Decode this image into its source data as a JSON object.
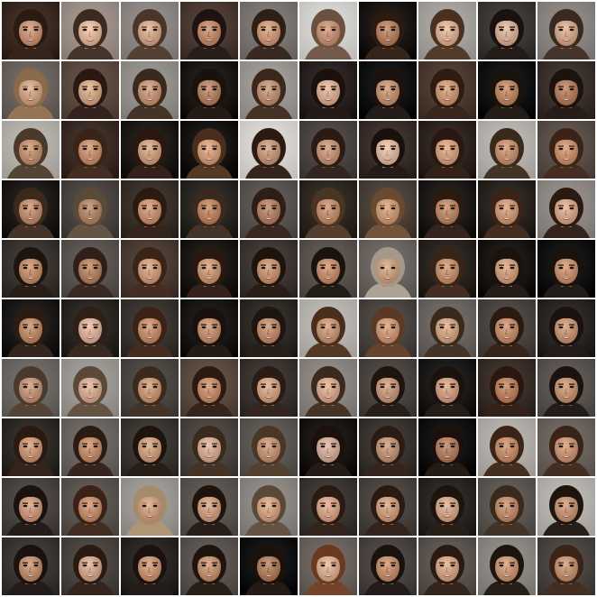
{
  "grid": {
    "rows": 10,
    "cols": 10,
    "separator_color": "#ffffff",
    "tiles": [
      {
        "bg": "#3a2a22",
        "skin": "#c99a7e",
        "hair": "#2a1a12"
      },
      {
        "bg": "#9a8e86",
        "skin": "#e2bba0",
        "hair": "#3b2a20"
      },
      {
        "bg": "#8c8682",
        "skin": "#d5ae92",
        "hair": "#4a3628"
      },
      {
        "bg": "#4a3a32",
        "skin": "#c29176",
        "hair": "#1e130e"
      },
      {
        "bg": "#7a7470",
        "skin": "#cfa081",
        "hair": "#2e1f16"
      },
      {
        "bg": "#d2d0cc",
        "skin": "#c99a80",
        "hair": "#6a5040"
      },
      {
        "bg": "#1a1614",
        "skin": "#b98a6c",
        "hair": "#2a1a10"
      },
      {
        "bg": "#a4a09c",
        "skin": "#dcb59a",
        "hair": "#4a3020"
      },
      {
        "bg": "#3c3836",
        "skin": "#d8b49c",
        "hair": "#1a120e"
      },
      {
        "bg": "#8a8480",
        "skin": "#d4ad92",
        "hair": "#3a2a20"
      },
      {
        "bg": "#6a625c",
        "skin": "#d3a98c",
        "hair": "#8a6a4a"
      },
      {
        "bg": "#5a4a40",
        "skin": "#d6ac8e",
        "hair": "#2a1812"
      },
      {
        "bg": "#928e8a",
        "skin": "#c89c80",
        "hair": "#3a2a1e"
      },
      {
        "bg": "#1c1816",
        "skin": "#b88a70",
        "hair": "#1a100c"
      },
      {
        "bg": "#9a9692",
        "skin": "#c39a80",
        "hair": "#3a281c"
      },
      {
        "bg": "#2a2220",
        "skin": "#dcb29a",
        "hair": "#1a100c"
      },
      {
        "bg": "#121010",
        "skin": "#c89a7c",
        "hair": "#1a120e"
      },
      {
        "bg": "#4a3a30",
        "skin": "#cf9f80",
        "hair": "#2e1c12"
      },
      {
        "bg": "#101010",
        "skin": "#c2906e",
        "hair": "#1a120c"
      },
      {
        "bg": "#3a302c",
        "skin": "#b8866a",
        "hair": "#1c120e"
      },
      {
        "bg": "#b2aea8",
        "skin": "#c6987a",
        "hair": "#4a3a2a"
      },
      {
        "bg": "#3a2c24",
        "skin": "#c99878",
        "hair": "#3a2418"
      },
      {
        "bg": "#1e1a18",
        "skin": "#d0a588",
        "hair": "#2a1810"
      },
      {
        "bg": "#161412",
        "skin": "#d4a484",
        "hair": "#4a2e1c"
      },
      {
        "bg": "#d6d2ce",
        "skin": "#c89e84",
        "hair": "#2a1a12"
      },
      {
        "bg": "#4a4442",
        "skin": "#c89c80",
        "hair": "#2a1c14"
      },
      {
        "bg": "#3a2e2a",
        "skin": "#e0bca6",
        "hair": "#1a100c"
      },
      {
        "bg": "#2e2420",
        "skin": "#d6a688",
        "hair": "#2a1810"
      },
      {
        "bg": "#b4b0ac",
        "skin": "#c89878",
        "hair": "#3a2a1c"
      },
      {
        "bg": "#5a4e48",
        "skin": "#cc9878",
        "hair": "#3a2418"
      },
      {
        "bg": "#1e1a18",
        "skin": "#c49478",
        "hair": "#3a2a1e"
      },
      {
        "bg": "#4a4440",
        "skin": "#b88e72",
        "hair": "#5a4a3a"
      },
      {
        "bg": "#3a302a",
        "skin": "#cc9a7a",
        "hair": "#2a1a10"
      },
      {
        "bg": "#2a2622",
        "skin": "#c08c6c",
        "hair": "#3a2a1e"
      },
      {
        "bg": "#5a5450",
        "skin": "#b88a70",
        "hair": "#2e1e16"
      },
      {
        "bg": "#2e2820",
        "skin": "#c69678",
        "hair": "#4a3424"
      },
      {
        "bg": "#4a4038",
        "skin": "#d0a282",
        "hair": "#6a4a2e"
      },
      {
        "bg": "#1e1a18",
        "skin": "#c09070",
        "hair": "#2a1a12"
      },
      {
        "bg": "#2a2420",
        "skin": "#d0a080",
        "hair": "#3a2418"
      },
      {
        "bg": "#8e8884",
        "skin": "#d8ac90",
        "hair": "#2a1a12"
      },
      {
        "bg": "#3a3430",
        "skin": "#c49474",
        "hair": "#1e140e"
      },
      {
        "bg": "#5a5450",
        "skin": "#b88a6e",
        "hair": "#2e2018"
      },
      {
        "bg": "#4a3c34",
        "skin": "#d2a284",
        "hair": "#3a2418"
      },
      {
        "bg": "#1c1816",
        "skin": "#cc9e80",
        "hair": "#2a1810"
      },
      {
        "bg": "#3e3632",
        "skin": "#c89a7a",
        "hair": "#1e140e"
      },
      {
        "bg": "#5a524c",
        "skin": "#c89676",
        "hair": "#1a120c"
      },
      {
        "bg": "#6a6460",
        "skin": "#d0a688",
        "hair": "#a49888"
      },
      {
        "bg": "#2a2420",
        "skin": "#c8987a",
        "hair": "#3a2418"
      },
      {
        "bg": "#1a1614",
        "skin": "#d2a486",
        "hair": "#1a120c"
      },
      {
        "bg": "#121010",
        "skin": "#c89878",
        "hair": "#1a120c"
      },
      {
        "bg": "#1c1a18",
        "skin": "#c09272",
        "hair": "#2a1c14"
      },
      {
        "bg": "#2a2622",
        "skin": "#dcb4a0",
        "hair": "#2e2016"
      },
      {
        "bg": "#3a3430",
        "skin": "#c89676",
        "hair": "#3a2216"
      },
      {
        "bg": "#1a1816",
        "skin": "#c4967a",
        "hair": "#1a100c"
      },
      {
        "bg": "#2e2a26",
        "skin": "#c49476",
        "hair": "#1e1410"
      },
      {
        "bg": "#b6b2ae",
        "skin": "#cc9e80",
        "hair": "#4a2e1c"
      },
      {
        "bg": "#4a4440",
        "skin": "#d0a080",
        "hair": "#5a3a24"
      },
      {
        "bg": "#6a6460",
        "skin": "#d4aa8c",
        "hair": "#3a2a1e"
      },
      {
        "bg": "#4a4440",
        "skin": "#c89676",
        "hair": "#2a1a12"
      },
      {
        "bg": "#2a2624",
        "skin": "#c99c80",
        "hair": "#1a120e"
      },
      {
        "bg": "#6a6662",
        "skin": "#c49a80",
        "hair": "#4a3a2e"
      },
      {
        "bg": "#9a9692",
        "skin": "#d8b09a",
        "hair": "#5a4838"
      },
      {
        "bg": "#4a4642",
        "skin": "#cc9e80",
        "hair": "#3a2a1e"
      },
      {
        "bg": "#5a4a40",
        "skin": "#c89676",
        "hair": "#2a1a10"
      },
      {
        "bg": "#3a3430",
        "skin": "#d4a88a",
        "hair": "#2a1c14"
      },
      {
        "bg": "#8a8480",
        "skin": "#d8ae94",
        "hair": "#3a2a1e"
      },
      {
        "bg": "#4a4440",
        "skin": "#c89e84",
        "hair": "#1e140e"
      },
      {
        "bg": "#1c1a18",
        "skin": "#d2a48a",
        "hair": "#1a120c"
      },
      {
        "bg": "#3a2e28",
        "skin": "#c08a6a",
        "hair": "#2a1810"
      },
      {
        "bg": "#5a5450",
        "skin": "#c89a7c",
        "hair": "#1a120e"
      },
      {
        "bg": "#2e2a26",
        "skin": "#cc9c7e",
        "hair": "#2a1a12"
      },
      {
        "bg": "#6a6460",
        "skin": "#c49474",
        "hair": "#2a1c14"
      },
      {
        "bg": "#3a3632",
        "skin": "#d0a486",
        "hair": "#1e140e"
      },
      {
        "bg": "#4a4440",
        "skin": "#d8b09a",
        "hair": "#3a2a1e"
      },
      {
        "bg": "#5a5652",
        "skin": "#c89a7e",
        "hair": "#4a3626"
      },
      {
        "bg": "#1a1614",
        "skin": "#d4b0a0",
        "hair": "#1a100c"
      },
      {
        "bg": "#3a3430",
        "skin": "#c49a80",
        "hair": "#2a1c14"
      },
      {
        "bg": "#121010",
        "skin": "#b8866a",
        "hair": "#1a100c"
      },
      {
        "bg": "#b0aca8",
        "skin": "#c89676",
        "hair": "#3a2418"
      },
      {
        "bg": "#6a625c",
        "skin": "#cc9c80",
        "hair": "#3a2418"
      },
      {
        "bg": "#4a4440",
        "skin": "#cc9e84",
        "hair": "#1a120e"
      },
      {
        "bg": "#5a5450",
        "skin": "#c89676",
        "hair": "#3a2216"
      },
      {
        "bg": "#9a9692",
        "skin": "#d0a484",
        "hair": "#a48c6a"
      },
      {
        "bg": "#5a5450",
        "skin": "#d0a488",
        "hair": "#1e140e"
      },
      {
        "bg": "#8a8682",
        "skin": "#d4a888",
        "hair": "#5a4838"
      },
      {
        "bg": "#3a3632",
        "skin": "#d6aa8e",
        "hair": "#2a1a12"
      },
      {
        "bg": "#4a4440",
        "skin": "#d2a486",
        "hair": "#2a1a12"
      },
      {
        "bg": "#2a2624",
        "skin": "#d4aa90",
        "hair": "#1e140e"
      },
      {
        "bg": "#5a5652",
        "skin": "#c49476",
        "hair": "#3a2a1e"
      },
      {
        "bg": "#b4b0ac",
        "skin": "#c89a7e",
        "hair": "#1e140e"
      },
      {
        "bg": "#3a3632",
        "skin": "#c49678",
        "hair": "#1a120e"
      },
      {
        "bg": "#4a4440",
        "skin": "#d4ac94",
        "hair": "#2a1a12"
      },
      {
        "bg": "#2a2624",
        "skin": "#cc9a7c",
        "hair": "#1a120e"
      },
      {
        "bg": "#5a5450",
        "skin": "#c8987a",
        "hair": "#1e140e"
      },
      {
        "bg": "#121010",
        "skin": "#b48668",
        "hair": "#1a100c"
      },
      {
        "bg": "#6a625c",
        "skin": "#dab296",
        "hair": "#6a3a20"
      },
      {
        "bg": "#4a4440",
        "skin": "#c89676",
        "hair": "#1a120e"
      },
      {
        "bg": "#5a5450",
        "skin": "#d6aa8e",
        "hair": "#2a1a12"
      },
      {
        "bg": "#8a8682",
        "skin": "#cc9c80",
        "hair": "#1e140e"
      },
      {
        "bg": "#4a4440",
        "skin": "#c89a7c",
        "hair": "#3a2418"
      }
    ]
  }
}
